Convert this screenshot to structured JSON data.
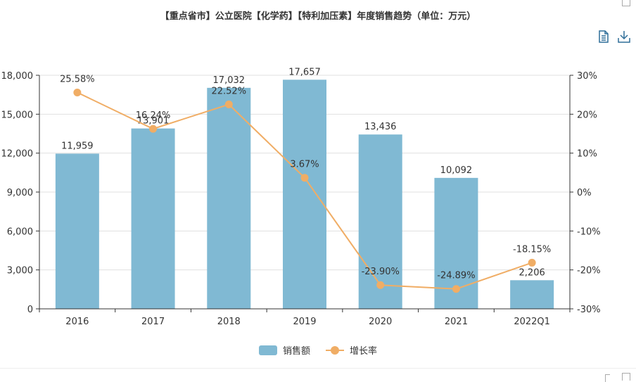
{
  "title": "【重点省市】公立医院【化学药】【特利加压素】年度销售趋势（单位：万元）",
  "toolbox": {
    "data_view_icon": "data-view-icon",
    "download_icon": "download-icon"
  },
  "colors": {
    "bar": "#80b9d3",
    "line": "#f0ad65",
    "axis": "#333333",
    "grid": "#e0e0e0"
  },
  "chart_data": {
    "type": "bar",
    "title": "【重点省市】公立医院【化学药】【特利加压素】年度销售趋势（单位：万元）",
    "categories": [
      "2016",
      "2017",
      "2018",
      "2019",
      "2020",
      "2021",
      "2022Q1"
    ],
    "series": [
      {
        "name": "销售额",
        "type": "bar",
        "axis": "left",
        "values": [
          11959,
          13901,
          17032,
          17657,
          13436,
          10092,
          2206
        ],
        "labels": [
          "11,959",
          "13,901",
          "17,032",
          "17,657",
          "13,436",
          "10,092",
          "2,206"
        ]
      },
      {
        "name": "增长率",
        "type": "line",
        "axis": "right",
        "values": [
          25.58,
          16.24,
          22.52,
          3.67,
          -23.9,
          -24.89,
          -18.15
        ],
        "labels": [
          "25.58%",
          "16.24%",
          "22.52%",
          "3.67%",
          "-23.90%",
          "-24.89%",
          "-18.15%"
        ]
      }
    ],
    "y_left": {
      "range": [
        0,
        18000
      ],
      "ticks": [
        "0",
        "3,000",
        "6,000",
        "9,000",
        "12,000",
        "15,000",
        "18,000"
      ]
    },
    "y_right": {
      "range": [
        -30,
        30
      ],
      "ticks": [
        "-30%",
        "-20%",
        "-10%",
        "0%",
        "10%",
        "20%",
        "30%"
      ]
    },
    "grid": true,
    "legend": "bottom"
  }
}
